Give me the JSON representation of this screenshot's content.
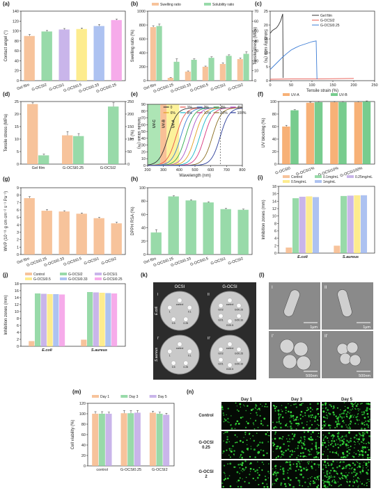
{
  "panels": [
    {
      "label": "(a)",
      "type": "bar",
      "ylabel": "Contact angel (°)",
      "ylim": [
        0,
        140
      ],
      "yticks": [
        0,
        20,
        40,
        60,
        80,
        100,
        120,
        140
      ],
      "categories": [
        "Gel film",
        "G-OCSI2",
        "G-OCSI1",
        "G-OCSI0.5",
        "G-OCSI0.33",
        "G-OCSI0.25"
      ],
      "series": [
        {
          "values": [
            90,
            99,
            103,
            104,
            110,
            122
          ],
          "errors": [
            3,
            2,
            2,
            2,
            3,
            2
          ],
          "colors": [
            "#f6b98a",
            "#86d49a",
            "#bfa8e6",
            "#fde97a",
            "#9fb7ef",
            "#f59ce6"
          ]
        }
      ]
    },
    {
      "label": "(b)",
      "type": "bar",
      "ylabel": "Swelling ratio (%)",
      "y2label": "Solubility ratio (%)",
      "ylim": [
        0,
        1000
      ],
      "y2lim": [
        0,
        70
      ],
      "yticks": [
        0,
        200,
        400,
        600,
        800,
        1000
      ],
      "y2ticks": [
        0,
        10,
        20,
        30,
        40,
        50,
        60,
        70
      ],
      "categories": [
        "Gel film",
        "G-OCSI0.25",
        "G-OCSI0.33",
        "G-OCSI0.5",
        "G-OCSI1",
        "G-OCSI2"
      ],
      "legend": [
        "Swelling ratio",
        "Solubility ratio"
      ],
      "series": [
        {
          "name": "Swelling ratio",
          "values": [
            770,
            40,
            130,
            200,
            240,
            310
          ],
          "errors": [
            20,
            5,
            10,
            10,
            15,
            15
          ],
          "color": "#f6b98a"
        },
        {
          "name": "Solubility ratio",
          "values": [
            55,
            19,
            21,
            23,
            25,
            27
          ],
          "errors": [
            2,
            3,
            1,
            1,
            1,
            2
          ],
          "color": "#86d49a",
          "axis": "y2"
        }
      ]
    },
    {
      "label": "(c)",
      "type": "line",
      "xlabel": "Tensile strain (%)",
      "ylabel": "Tensile stress (MPa)",
      "xlim": [
        0,
        250
      ],
      "ylim": [
        0,
        25
      ],
      "xticks": [
        0,
        50,
        100,
        150,
        200,
        250
      ],
      "yticks": [
        0,
        5,
        10,
        15,
        20,
        25
      ],
      "series": [
        {
          "name": "Gel film",
          "color": "#333333",
          "x": [
            0,
            5,
            10,
            15,
            20,
            25,
            28,
            30,
            31
          ],
          "y": [
            17,
            18,
            18.5,
            19,
            20,
            21.5,
            23,
            24,
            1
          ]
        },
        {
          "name": "G-OCSI2",
          "color": "#e8534a",
          "x": [
            0,
            50,
            100,
            150,
            200
          ],
          "y": [
            0.5,
            0.6,
            0.6,
            0.7,
            0.8
          ]
        },
        {
          "name": "G-OCSI0.25",
          "color": "#3a7bd5",
          "x": [
            0,
            10,
            20,
            30,
            40,
            50,
            60,
            70,
            80,
            90,
            100,
            110,
            112
          ],
          "y": [
            4,
            5.5,
            7,
            8.5,
            9.8,
            11,
            11.8,
            12.5,
            13,
            13.5,
            14,
            14.3,
            0.5
          ]
        }
      ]
    },
    {
      "label": "(d)",
      "type": "bar",
      "ylabel": "Tensile stress (MPa)",
      "y2label": "Tensile strain (%)",
      "ylim": [
        0,
        25
      ],
      "y2lim": [
        0,
        250
      ],
      "yticks": [
        0,
        5,
        10,
        15,
        20,
        25
      ],
      "y2ticks": [
        0,
        50,
        100,
        150,
        200,
        250
      ],
      "categories": [
        "Gel film",
        "G-OCSI0.25",
        "G-OCSI2"
      ],
      "series": [
        {
          "values": [
            24,
            11.5,
            0
          ],
          "errors": [
            0.5,
            1.5,
            0
          ],
          "color": "#f6b98a"
        },
        {
          "values": [
            35,
            112,
            230
          ],
          "errors": [
            5,
            10,
            15
          ],
          "color": "#86d49a",
          "axis": "y2"
        }
      ]
    },
    {
      "label": "(e)",
      "type": "line",
      "xlabel": "Wavelength (nm)",
      "ylabel": "T (%)",
      "xlim": [
        200,
        800
      ],
      "ylim": [
        0,
        90
      ],
      "xticks": [
        200,
        300,
        400,
        500,
        600,
        700,
        800
      ],
      "yticks": [
        0,
        10,
        20,
        30,
        40,
        50,
        60,
        70,
        80,
        90
      ],
      "bands": [
        {
          "name": "UV-C",
          "from": 200,
          "to": 280,
          "color": "#9fe0a8"
        },
        {
          "name": "UV-B",
          "from": 280,
          "to": 320,
          "color": "#f8b585"
        },
        {
          "name": "UV-A",
          "from": 320,
          "to": 400,
          "color": "#fbf08a"
        }
      ],
      "legend": [
        "0",
        "1%",
        "2%",
        "3%",
        "4%",
        "6%",
        "8%",
        "10%",
        "50%",
        "100%"
      ],
      "series": [
        {
          "name": "0",
          "mid": 330,
          "color": "#333333"
        },
        {
          "name": "1%",
          "mid": 380,
          "color": "#e8534a"
        },
        {
          "name": "2%",
          "mid": 410,
          "color": "#3a7bd5"
        },
        {
          "name": "3%",
          "mid": 440,
          "color": "#2eaa4f"
        },
        {
          "name": "4%",
          "mid": 470,
          "color": "#a855c7"
        },
        {
          "name": "6%",
          "mid": 500,
          "color": "#e0a020"
        },
        {
          "name": "8%",
          "mid": 530,
          "color": "#15b6c8"
        },
        {
          "name": "10%",
          "mid": 560,
          "color": "#d6357d"
        },
        {
          "name": "50%",
          "mid": 610,
          "color": "#8a6d20"
        },
        {
          "name": "100%",
          "mid": 660,
          "color": "#2a3d9a"
        }
      ]
    },
    {
      "label": "(f)",
      "type": "bar",
      "ylabel": "UV blocking (%)",
      "ylim": [
        0,
        100
      ],
      "yticks": [
        0,
        20,
        40,
        60,
        80,
        100
      ],
      "categories": [
        "G-OCSI0",
        "G-OCSI1%",
        "G-OCSI10%",
        "G-OCSI100%"
      ],
      "legend": [
        "UV-A",
        "UV-B"
      ],
      "series": [
        {
          "name": "UV-A",
          "values": [
            60,
            98,
            99,
            99
          ],
          "errors": [
            2,
            1,
            1,
            1
          ],
          "color": "#f6a35f"
        },
        {
          "name": "UV-B",
          "values": [
            86,
            99,
            99,
            100
          ],
          "errors": [
            1,
            1,
            1,
            1
          ],
          "color": "#5fc37a"
        }
      ]
    },
    {
      "label": "(g)",
      "type": "bar",
      "ylabel": "WVP (10⁻¹¹ g cm cm⁻² s⁻¹ Pa⁻¹)",
      "ylim": [
        0,
        9
      ],
      "yticks": [
        0,
        1,
        2,
        3,
        4,
        5,
        6,
        7,
        8,
        9
      ],
      "categories": [
        "Gel film",
        "G-OCSI0.25",
        "G-OCSI0.33",
        "G-OCSI0.5",
        "G-OCSI1",
        "G-OCSI2"
      ],
      "series": [
        {
          "values": [
            7.6,
            5.9,
            5.8,
            5.5,
            4.9,
            4.2
          ],
          "errors": [
            0.2,
            0.15,
            0.1,
            0.1,
            0.1,
            0.15
          ],
          "color": "#f6b98a"
        }
      ]
    },
    {
      "label": "(h)",
      "type": "bar",
      "ylabel": "DPPH RSA (%)",
      "ylim": [
        0,
        100
      ],
      "yticks": [
        0,
        20,
        40,
        60,
        80,
        100
      ],
      "categories": [
        "Gel film",
        "G-OCSI0.25",
        "G-OCSI0.33",
        "G-OCSI0.5",
        "G-OCSI1",
        "G-OCSI2"
      ],
      "series": [
        {
          "values": [
            33,
            87,
            81,
            78,
            68,
            67
          ],
          "errors": [
            4,
            1,
            1,
            1,
            1,
            1
          ],
          "color": "#86d49a"
        }
      ]
    },
    {
      "label": "(i)",
      "type": "bar",
      "ylabel": "Inhibition zones (mm)",
      "ylim": [
        0,
        18
      ],
      "yticks": [
        0,
        2,
        4,
        6,
        8,
        10,
        12,
        14,
        16,
        18
      ],
      "categories": [
        "E.coli",
        "S.aureus"
      ],
      "legend": [
        "Control",
        "0.1mg/mL",
        "0.25mg/mL",
        "0.5mg/mL",
        "1mg/mL"
      ],
      "series": [
        {
          "name": "Control",
          "values": [
            1.5,
            2.0
          ],
          "color": "#f6b98a"
        },
        {
          "name": "0.1mg/mL",
          "values": [
            14.8,
            15.4
          ],
          "color": "#86d49a"
        },
        {
          "name": "0.25mg/mL",
          "values": [
            15.2,
            15.5
          ],
          "color": "#bfa8e6"
        },
        {
          "name": "0.5mg/mL",
          "values": [
            15.3,
            15.6
          ],
          "color": "#fde97a"
        },
        {
          "name": "1mg/mL",
          "values": [
            15.1,
            15.6
          ],
          "color": "#9fb7ef"
        }
      ]
    },
    {
      "label": "(j)",
      "type": "bar",
      "ylabel": "Inhibition zones (mm)",
      "ylim": [
        0,
        18
      ],
      "yticks": [
        0,
        2,
        4,
        6,
        8,
        10,
        12,
        14,
        16,
        18
      ],
      "categories": [
        "E.coli",
        "S.aureus"
      ],
      "legend": [
        "Control",
        "G-OCSI2",
        "G-OCSI1",
        "G-OCSI0.5",
        "G-OCSI0.33",
        "G-OCSI0.25"
      ],
      "series": [
        {
          "name": "Control",
          "values": [
            1.5,
            1.9
          ],
          "color": "#f6b98a"
        },
        {
          "name": "G-OCSI2",
          "values": [
            15.2,
            15.6
          ],
          "color": "#86d49a"
        },
        {
          "name": "G-OCSI1",
          "values": [
            15.1,
            15.5
          ],
          "color": "#bfa8e6"
        },
        {
          "name": "G-OCSI0.5",
          "values": [
            15.0,
            15.4
          ],
          "color": "#fde97a"
        },
        {
          "name": "G-OCSI0.33",
          "values": [
            15.0,
            15.3
          ],
          "color": "#9fb7ef"
        },
        {
          "name": "G-OCSI0.25",
          "values": [
            14.9,
            15.2
          ],
          "color": "#f59ce6"
        }
      ]
    },
    {
      "label": "(m)",
      "type": "bar",
      "ylabel": "Cell viability (%)",
      "ylim": [
        0,
        120
      ],
      "yticks": [
        0,
        20,
        40,
        60,
        80,
        100,
        120
      ],
      "categories": [
        "control",
        "G-OCSI0.25",
        "G-OCSI2"
      ],
      "legend": [
        "Day 1",
        "Day 3",
        "Day 5"
      ],
      "series": [
        {
          "name": "Day 1",
          "values": [
            100,
            101,
            102
          ],
          "errors": [
            4,
            5,
            3
          ],
          "color": "#f6b98a"
        },
        {
          "name": "Day 3",
          "values": [
            100,
            101,
            100
          ],
          "errors": [
            4,
            5,
            3
          ],
          "color": "#86d49a"
        },
        {
          "name": "Day 5",
          "values": [
            100,
            102,
            98
          ],
          "errors": [
            3,
            4,
            3
          ],
          "color": "#bfa8e6"
        }
      ]
    }
  ],
  "k": {
    "label": "(k)",
    "cols": [
      "OCSI",
      "G-OCSI"
    ],
    "rows": [
      "E.coli",
      "S.aureus"
    ],
    "corner": [
      "I",
      "II",
      "I'",
      "II'"
    ],
    "disc_labels": [
      "GO0.25",
      "GO0.33",
      "GO0.5",
      "GO1",
      "GO2",
      "0.1",
      "0.25",
      "0.5",
      "1"
    ],
    "control": "control"
  },
  "l": {
    "label": "(l)",
    "corner": [
      "I",
      "II",
      "I'",
      "II'"
    ],
    "scale": [
      "1μm",
      "1μm",
      "500nm",
      "500nm"
    ]
  },
  "n": {
    "label": "(n)",
    "cols": [
      "Day 1",
      "Day 3",
      "Day 5"
    ],
    "rows": [
      "Control",
      "G-OCSI 0.25",
      "G-OCSI 2"
    ]
  }
}
